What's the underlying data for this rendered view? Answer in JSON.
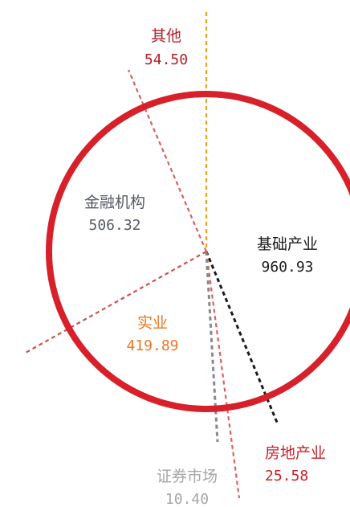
{
  "chart_data": {
    "type": "pie",
    "style": "circle-outline-with-dashed-dividers",
    "slices": [
      {
        "name": "基础产业",
        "value": 960.93,
        "color": "#1a1a1a"
      },
      {
        "name": "房地产业",
        "value": 25.58,
        "color": "#c8202a"
      },
      {
        "name": "证券市场",
        "value": 10.4,
        "color": "#a6a6a6"
      },
      {
        "name": "实业",
        "value": 419.89,
        "color": "#ee7623"
      },
      {
        "name": "金融机构",
        "value": 506.32,
        "color": "#555a63"
      },
      {
        "name": "其他",
        "value": 54.5,
        "color": "#b3202a"
      }
    ],
    "ring_color": "#d7202a",
    "divider_colors": [
      "#f0a020",
      "#1a1a1a",
      "#888888",
      "#e06060",
      "#d05050",
      "#d86060"
    ]
  }
}
